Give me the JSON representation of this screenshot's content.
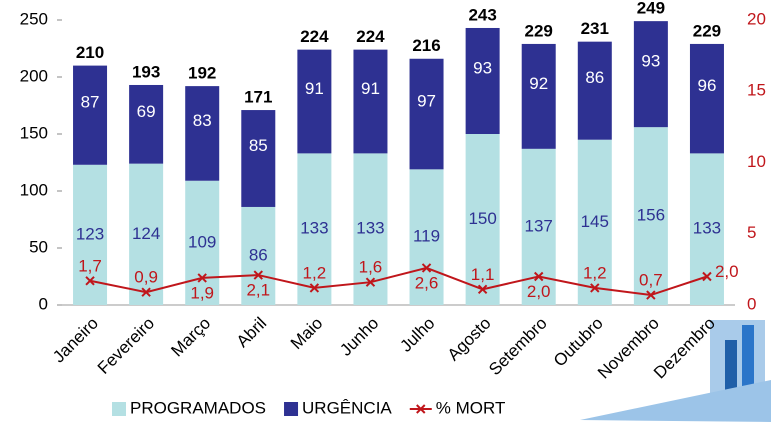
{
  "chart_data": {
    "type": "stacked-bar-line",
    "categories": [
      "Janeiro",
      "Fevereiro",
      "Março",
      "Abril",
      "Maio",
      "Junho",
      "Julho",
      "Agosto",
      "Setembro",
      "Outubro",
      "Novembro",
      "Dezembro"
    ],
    "series": [
      {
        "name": "PROGRAMADOS",
        "color": "#b4e0e3",
        "values": [
          123,
          124,
          109,
          86,
          133,
          133,
          119,
          150,
          137,
          145,
          156,
          133
        ]
      },
      {
        "name": "URGÊNCIA",
        "color": "#2e3192",
        "values": [
          87,
          69,
          83,
          85,
          91,
          91,
          97,
          93,
          92,
          86,
          93,
          96
        ]
      },
      {
        "name": "% MORT",
        "color": "#c0161b",
        "axis": "y2",
        "type": "line",
        "values": [
          1.7,
          0.9,
          1.9,
          2.1,
          1.2,
          1.6,
          2.6,
          1.1,
          2.0,
          1.2,
          0.7,
          2.0
        ],
        "value_labels": [
          "1,7",
          "0,9",
          "1,9",
          "2,1",
          "1,2",
          "1,6",
          "2,6",
          "1,1",
          "2,0",
          "1,2",
          "0,7",
          "2,0"
        ]
      }
    ],
    "totals": [
      210,
      193,
      192,
      171,
      224,
      224,
      216,
      243,
      229,
      231,
      249,
      229
    ],
    "ylim": [
      0,
      250
    ],
    "yticks": [
      0,
      50,
      100,
      150,
      200,
      250
    ],
    "y2lim": [
      0,
      20
    ],
    "y2ticks": [
      0,
      5,
      10,
      15,
      20
    ],
    "y2color": "#c0161b"
  }
}
